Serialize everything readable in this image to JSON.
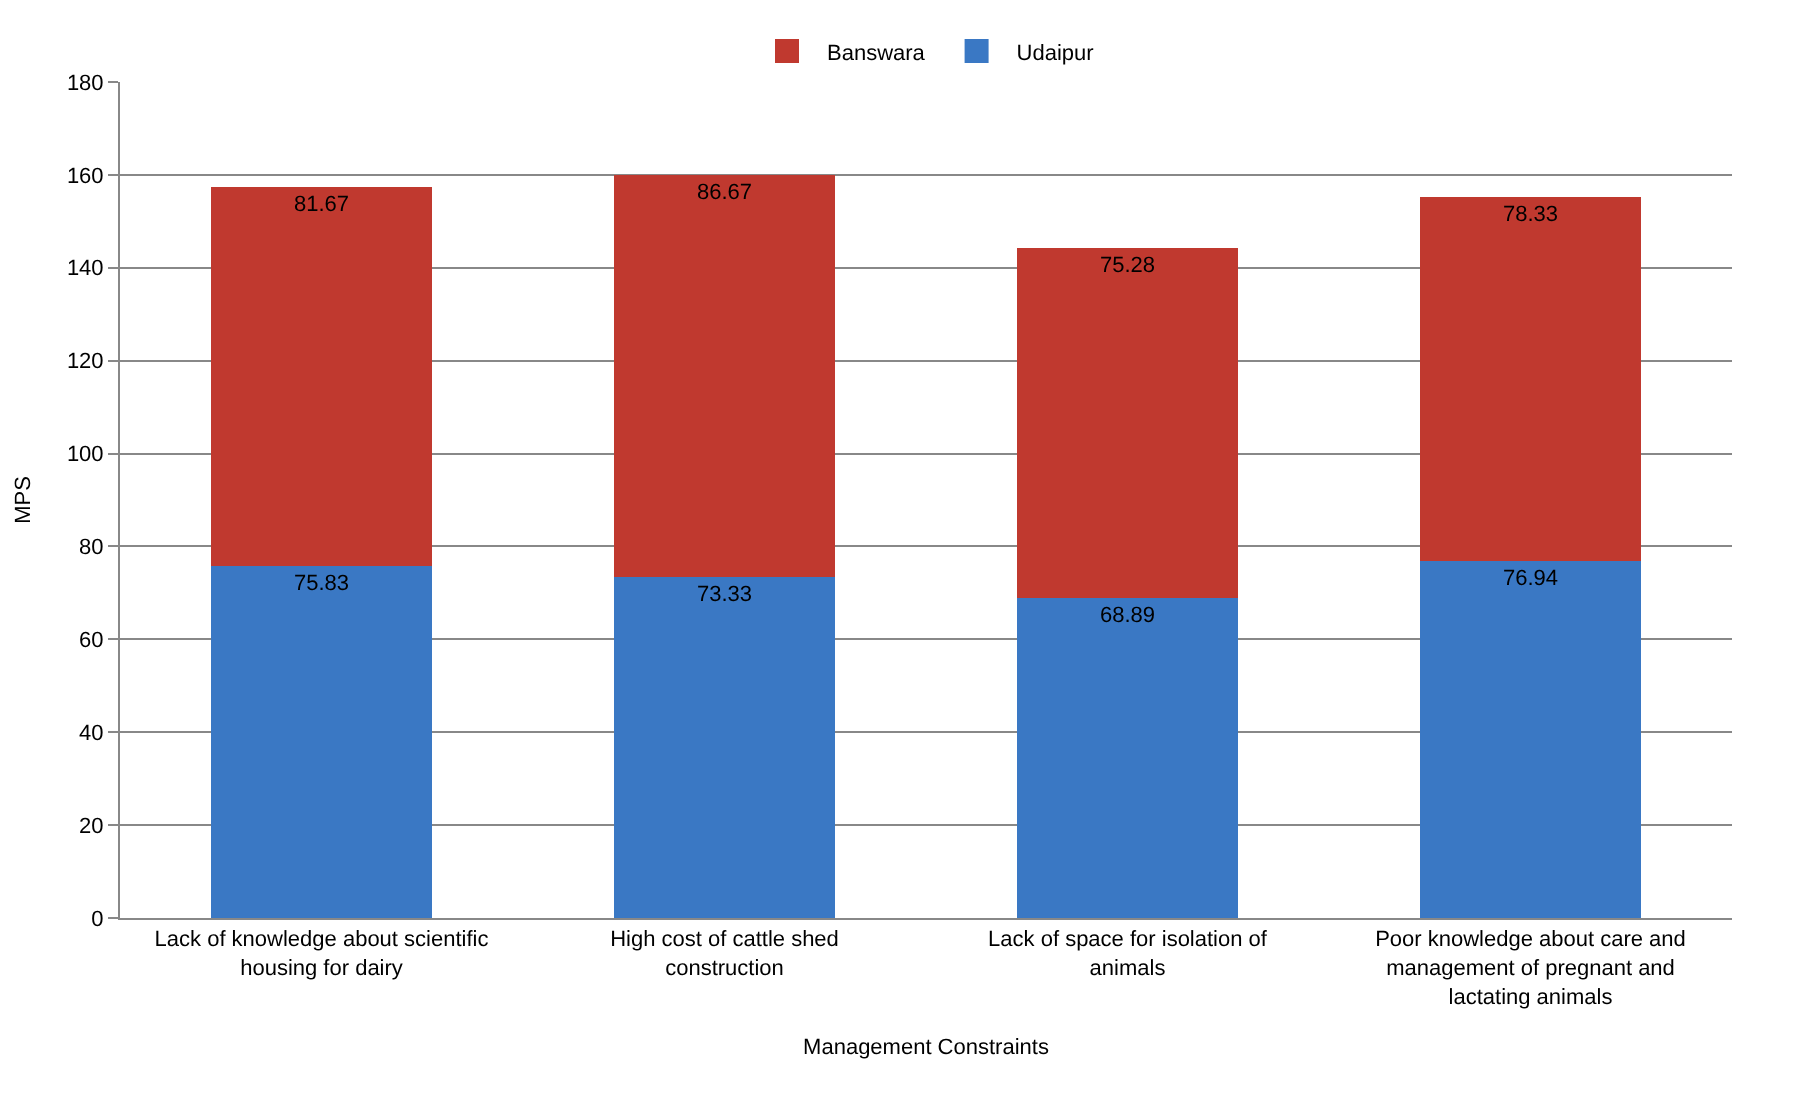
{
  "chart_data": {
    "type": "bar",
    "stacked": true,
    "xlabel": "Management Constraints",
    "ylabel": "MPS",
    "categories": [
      "Lack of knowledge about scientific housing for dairy",
      "High cost of cattle shed construction",
      "Lack of space for isolation of animals",
      "Poor knowledge about care and management of pregnant and lactating animals"
    ],
    "series": [
      {
        "name": "Udaipur",
        "color": "#3a78c4",
        "values": [
          75.83,
          73.33,
          68.89,
          76.94
        ]
      },
      {
        "name": "Banswara",
        "color": "#c0392f",
        "values": [
          81.67,
          86.67,
          75.28,
          78.33
        ]
      }
    ],
    "ylim": [
      0,
      180
    ],
    "yticks": [
      0,
      20,
      40,
      60,
      80,
      100,
      120,
      140,
      160,
      180
    ],
    "grid": "y",
    "legend": "top",
    "data_labels": true
  }
}
